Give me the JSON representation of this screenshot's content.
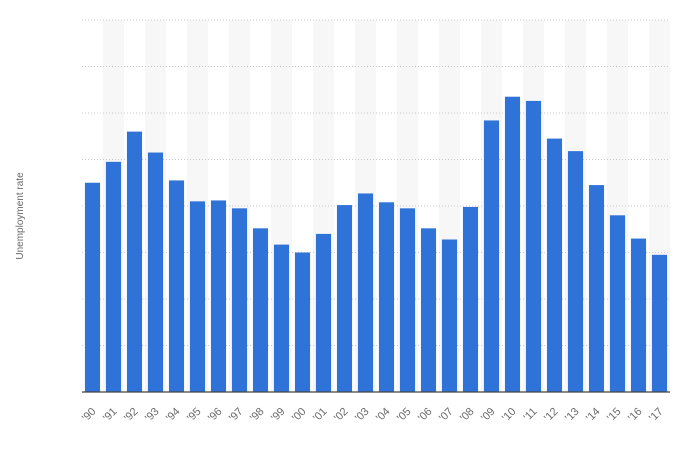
{
  "chart_data": {
    "type": "bar",
    "title": "",
    "xlabel": "",
    "ylabel": "Unemployment rate",
    "ylim": [
      0,
      8
    ],
    "grid": true,
    "legend": "none",
    "bar_color": "#2f73d8",
    "band_color": "#f7f7f7",
    "categories": [
      "'90",
      "'91",
      "'92",
      "'93",
      "'94",
      "'95",
      "'96",
      "'97",
      "'98",
      "'99",
      "'00",
      "'01",
      "'02",
      "'03",
      "'04",
      "'05",
      "'06",
      "'07",
      "'08",
      "'09",
      "'10",
      "'11",
      "'12",
      "'13",
      "'14",
      "'15",
      "'16",
      "'17"
    ],
    "values": [
      4.5,
      4.95,
      5.6,
      5.15,
      4.55,
      4.1,
      4.12,
      3.95,
      3.52,
      3.17,
      3.0,
      3.4,
      4.02,
      4.27,
      4.08,
      3.95,
      3.52,
      3.28,
      3.98,
      5.84,
      6.35,
      6.26,
      5.45,
      5.18,
      4.45,
      3.8,
      3.3,
      2.95
    ]
  }
}
